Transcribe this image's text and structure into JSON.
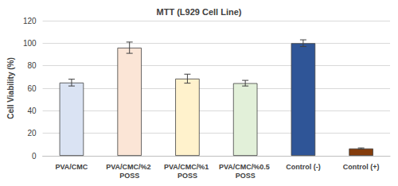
{
  "chart_data": {
    "type": "bar",
    "title": "MTT (L929 Cell Line)",
    "y_label": "Cell Viability (%)",
    "categories": [
      "PVA/CMC",
      "PVA/CMC/%2 POSS",
      "PVA/CMC/%1 POSS",
      "PVA/CMC/%0.5 POSS",
      "Control (-)",
      "Control (+)"
    ],
    "values": [
      65,
      96,
      68.5,
      64.5,
      100,
      6.5
    ],
    "errors": [
      3,
      5,
      4,
      2.5,
      3,
      0.5
    ],
    "colors": [
      "#dae3f3",
      "#fbe5d6",
      "#fff2cc",
      "#e2f0d9",
      "#2f5597",
      "#843c0c"
    ],
    "ylim": [
      0,
      120
    ],
    "yticks": [
      0,
      20,
      40,
      60,
      80,
      100,
      120
    ],
    "grid": true
  }
}
